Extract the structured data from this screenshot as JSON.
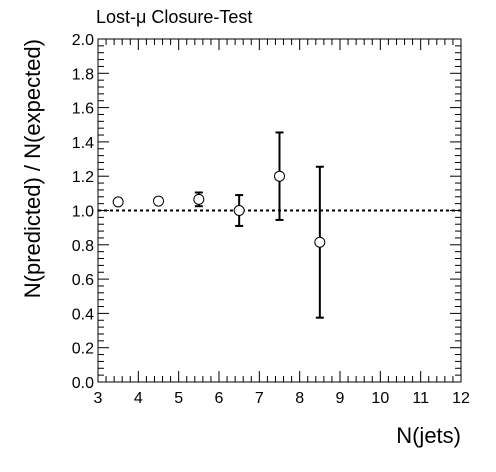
{
  "chart_data": {
    "type": "scatter",
    "title": "Lost-μ Closure-Test",
    "xlabel": "N(jets)",
    "ylabel": "N(predicted) / N(expected)",
    "xlim": [
      3,
      12
    ],
    "ylim": [
      0.0,
      2.0
    ],
    "x_ticks": [
      "3",
      "4",
      "5",
      "6",
      "7",
      "8",
      "9",
      "10",
      "11",
      "12"
    ],
    "y_ticks": [
      "0.0",
      "0.2",
      "0.4",
      "0.6",
      "0.8",
      "1.0",
      "1.2",
      "1.4",
      "1.6",
      "1.8",
      "2.0"
    ],
    "reference_line": 1.0,
    "grid": false,
    "points": [
      {
        "x": 3.5,
        "y": 1.05,
        "err": 0.0
      },
      {
        "x": 4.5,
        "y": 1.055,
        "err": 0.0
      },
      {
        "x": 5.5,
        "y": 1.065,
        "err": 0.04
      },
      {
        "x": 6.5,
        "y": 1.0,
        "err": 0.09
      },
      {
        "x": 7.5,
        "y": 1.2,
        "err": 0.255
      },
      {
        "x": 8.5,
        "y": 0.815,
        "err": 0.44
      }
    ]
  }
}
